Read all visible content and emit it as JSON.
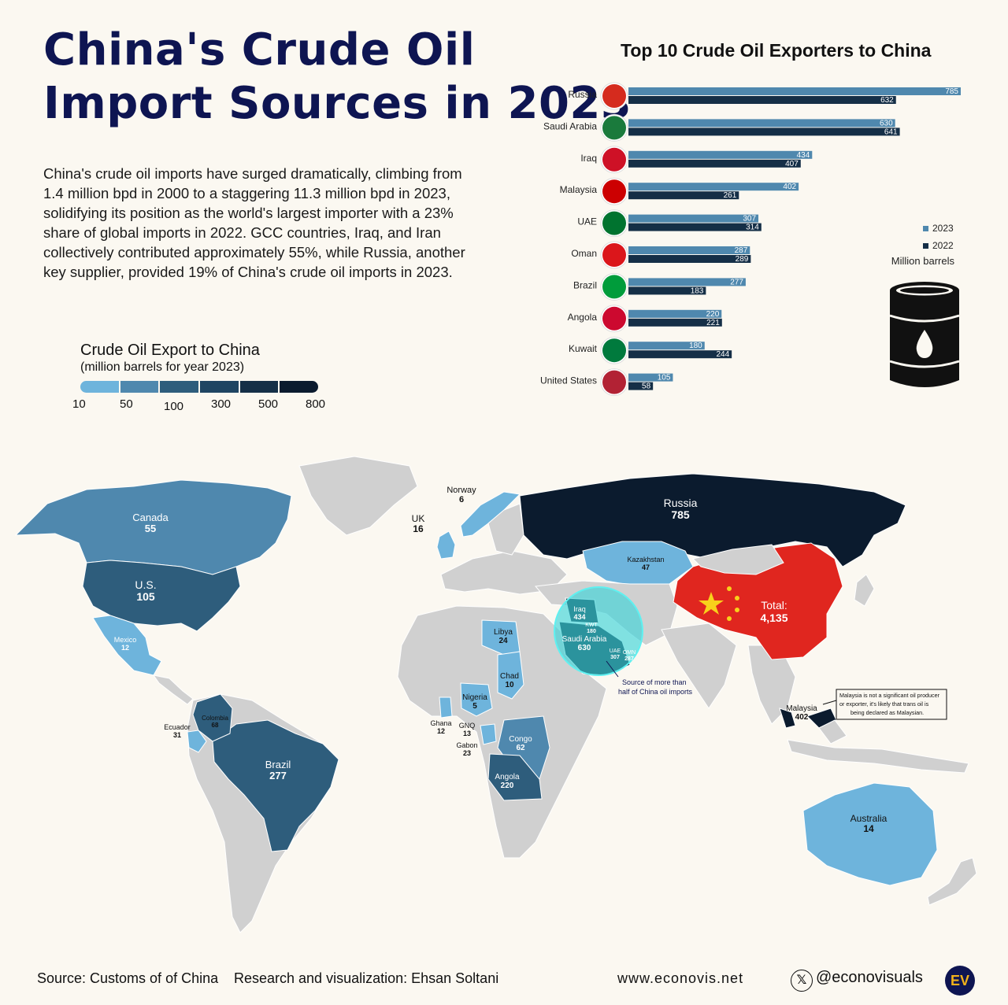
{
  "header": {
    "title_line1": "China's Crude Oil",
    "title_line2": "Import Sources in 2023"
  },
  "intro_text": "China's crude oil imports have surged dramatically, climbing from 1.4 million bpd in 2000 to a staggering 11.3 million bpd in 2023, solidifying its position as the world's largest importer with a 23% share of global imports in 2022. GCC countries, Iraq, and Iran collectively contributed approximately 55%, while Russia, another key supplier, provided 19% of China's crude oil imports in 2023.",
  "map_legend": {
    "title": "Crude Oil Export to China",
    "subtitle": "(million barrels for year 2023)",
    "ticks": [
      "10",
      "50",
      "100",
      "300",
      "500",
      "800"
    ],
    "colors": [
      "#6eb4dc",
      "#4f88ae",
      "#2e5d7c",
      "#1f4562",
      "#152f47",
      "#0b1b2e"
    ]
  },
  "chart_data": {
    "type": "bar",
    "title": "Top 10 Crude Oil Exporters to China",
    "categories": [
      "Russia",
      "Saudi Arabia",
      "Iraq",
      "Malaysia",
      "UAE",
      "Oman",
      "Brazil",
      "Angola",
      "Kuwait",
      "United States"
    ],
    "series": [
      {
        "name": "2023",
        "color": "#4f88ae",
        "values": [
          785,
          630,
          434,
          402,
          307,
          287,
          277,
          220,
          180,
          105
        ]
      },
      {
        "name": "2022",
        "color": "#152f47",
        "values": [
          632,
          641,
          407,
          261,
          314,
          289,
          183,
          221,
          244,
          58
        ]
      }
    ],
    "unit_label": "Million barrels",
    "legend_placement": "right"
  },
  "map": {
    "labels": [
      {
        "name": "Canada",
        "value": "55"
      },
      {
        "name": "U.S.",
        "value": "105"
      },
      {
        "name": "Mexico",
        "value": "12"
      },
      {
        "name": "Colombia",
        "value": "68"
      },
      {
        "name": "Ecuador",
        "value": "31"
      },
      {
        "name": "Brazil",
        "value": "277"
      },
      {
        "name": "Norway",
        "value": "6"
      },
      {
        "name": "UK",
        "value": "16"
      },
      {
        "name": "Russia",
        "value": "785"
      },
      {
        "name": "Kazakhstan",
        "value": "47"
      },
      {
        "name": "Libya",
        "value": "24"
      },
      {
        "name": "Chad",
        "value": "10"
      },
      {
        "name": "Nigeria",
        "value": "5"
      },
      {
        "name": "Ghana",
        "value": "12"
      },
      {
        "name": "GNQ",
        "value": "13"
      },
      {
        "name": "Gabon",
        "value": "23"
      },
      {
        "name": "Congo",
        "value": "62"
      },
      {
        "name": "Angola",
        "value": "220"
      },
      {
        "name": "Iraq",
        "value": "434"
      },
      {
        "name": "KWT",
        "value": "180"
      },
      {
        "name": "Saudi Arabia",
        "value": "630"
      },
      {
        "name": "UAE",
        "value": "307"
      },
      {
        "name": "OMN",
        "value": "287"
      },
      {
        "name": "Malaysia",
        "value": "402"
      },
      {
        "name": "Australia",
        "value": "14"
      }
    ],
    "china_label": "Total:",
    "china_value": "4,135",
    "gulf_note_line1": "Source of more than",
    "gulf_note_line2": "half of China oil imports",
    "malaysia_note_line1": "Malaysia is not a significant oil producer",
    "malaysia_note_line2": "or exporter, it's likely that trans oil is",
    "malaysia_note_line3": "being declared as Malaysian."
  },
  "footer": {
    "source": "Source: Customs of of China",
    "credit": "Research and visualization: Ehsan Soltani",
    "website": "www.econovis.net",
    "handle": "@econovisuals",
    "logo_text": "EV"
  }
}
